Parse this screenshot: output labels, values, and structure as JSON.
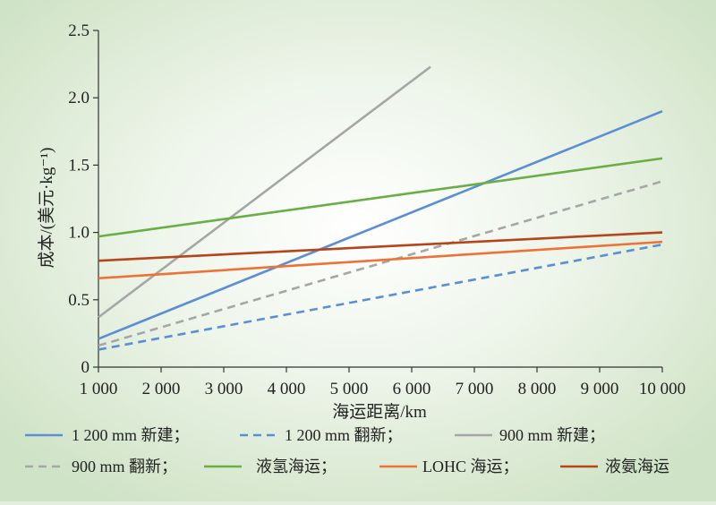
{
  "chart_data": {
    "type": "line",
    "xlabel": "海运距离/km",
    "ylabel": "成本/(美元·kg⁻¹)",
    "xlim": [
      1000,
      10000
    ],
    "ylim": [
      0,
      2.5
    ],
    "x_ticks": [
      "1 000",
      "2 000",
      "3 000",
      "4 000",
      "5 000",
      "6 000",
      "7 000",
      "8 000",
      "9 000",
      "10 000"
    ],
    "y_ticks": [
      "0",
      "0.5",
      "1.0",
      "1.5",
      "2.0",
      "2.5"
    ],
    "legend_position": "bottom",
    "series": [
      {
        "name": "1 200 mm 新建；",
        "color": "#5b8fd4",
        "dash": false,
        "x": [
          1000,
          10000
        ],
        "y": [
          0.21,
          1.9
        ]
      },
      {
        "name": "1 200 mm 翻新；",
        "color": "#5b8fd4",
        "dash": true,
        "x": [
          1000,
          10000
        ],
        "y": [
          0.13,
          0.91
        ]
      },
      {
        "name": "900 mm 新建；",
        "color": "#a6a6a6",
        "dash": false,
        "x": [
          1000,
          6300
        ],
        "y": [
          0.37,
          2.23
        ]
      },
      {
        "name": "900 mm 翻新；",
        "color": "#a6a6a6",
        "dash": true,
        "x": [
          1000,
          10000
        ],
        "y": [
          0.16,
          1.38
        ]
      },
      {
        "name": "液氢海运；",
        "color": "#6aae45",
        "dash": false,
        "x": [
          1000,
          10000
        ],
        "y": [
          0.97,
          1.55
        ]
      },
      {
        "name": "LOHC 海运；",
        "color": "#ec7237",
        "dash": false,
        "x": [
          1000,
          10000
        ],
        "y": [
          0.66,
          0.93
        ]
      },
      {
        "name": "液氨海运",
        "color": "#b5451b",
        "dash": false,
        "x": [
          1000,
          10000
        ],
        "y": [
          0.79,
          1.0
        ]
      }
    ]
  }
}
